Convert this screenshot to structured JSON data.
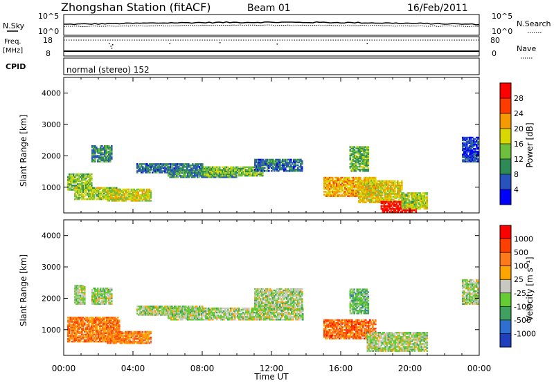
{
  "header": {
    "station": "Zhongshan Station (fitACF)",
    "beam": "Beam 01",
    "date": "16/Feb/2011"
  },
  "noise_panel": {
    "left_label": "N.Sky",
    "right_label": "N.Search",
    "left_ticks": [
      "10^5",
      "10^0"
    ],
    "right_ticks": [
      "10^5",
      "10^0"
    ]
  },
  "freq_panel": {
    "left_label_1": "Freq.",
    "left_label_2": "[MHz]",
    "right_label": "Nave",
    "left_ticks": [
      "18",
      "8"
    ],
    "right_ticks": [
      "80",
      "0"
    ]
  },
  "cpid_panel": {
    "label": "CPID",
    "text": "normal (stereo) 152"
  },
  "chart_data": [
    {
      "type": "heatmap",
      "title": "",
      "xlabel": "",
      "ylabel": "Slant Range [km]",
      "x_ticks": [
        "00:00",
        "04:00",
        "08:00",
        "12:00",
        "16:00",
        "20:00",
        "00:00"
      ],
      "y_ticks": [
        "1000",
        "2000",
        "3000",
        "4000"
      ],
      "ylim": [
        180,
        4500
      ],
      "colorbar": {
        "label": "Power [dB]",
        "ticks": [
          "4",
          "8",
          "12",
          "16",
          "20",
          "24",
          "28"
        ],
        "colors": [
          "#0000ff",
          "#2a52be",
          "#2e8b57",
          "#6fbf3f",
          "#d8d800",
          "#f59a00",
          "#ff3c00",
          "#ff0000"
        ]
      },
      "regions": [
        {
          "t0": 0.2,
          "t1": 1.6,
          "r0": 900,
          "r1": 1400,
          "level": 0.45
        },
        {
          "t0": 0.6,
          "t1": 3.2,
          "r0": 600,
          "r1": 1000,
          "level": 0.5
        },
        {
          "t0": 1.6,
          "t1": 2.8,
          "r0": 1800,
          "r1": 2300,
          "level": 0.3
        },
        {
          "t0": 2.5,
          "t1": 5.0,
          "r0": 550,
          "r1": 950,
          "level": 0.55
        },
        {
          "t0": 4.2,
          "t1": 8.0,
          "r0": 1450,
          "r1": 1750,
          "level": 0.25
        },
        {
          "t0": 6.0,
          "t1": 10.0,
          "r0": 1300,
          "r1": 1550,
          "level": 0.3
        },
        {
          "t0": 8.0,
          "t1": 11.5,
          "r0": 1350,
          "r1": 1650,
          "level": 0.45
        },
        {
          "t0": 11.0,
          "t1": 13.8,
          "r0": 1500,
          "r1": 1900,
          "level": 0.25
        },
        {
          "t0": 15.0,
          "t1": 18.0,
          "r0": 700,
          "r1": 1300,
          "level": 0.65
        },
        {
          "t0": 16.5,
          "t1": 17.6,
          "r0": 1500,
          "r1": 2300,
          "level": 0.4
        },
        {
          "t0": 17.0,
          "t1": 19.5,
          "r0": 500,
          "r1": 1200,
          "level": 0.6
        },
        {
          "t0": 18.3,
          "t1": 20.3,
          "r0": 200,
          "r1": 550,
          "level": 0.95
        },
        {
          "t0": 19.5,
          "t1": 21.0,
          "r0": 300,
          "r1": 800,
          "level": 0.5
        },
        {
          "t0": 23.0,
          "t1": 23.9,
          "r0": 1800,
          "r1": 2600,
          "level": 0.15
        }
      ]
    },
    {
      "type": "heatmap",
      "title": "",
      "xlabel": "Time UT",
      "ylabel": "Slant Range [km]",
      "x_ticks": [
        "00:00",
        "04:00",
        "08:00",
        "12:00",
        "16:00",
        "20:00",
        "00:00"
      ],
      "y_ticks": [
        "1000",
        "2000",
        "3000",
        "4000"
      ],
      "ylim": [
        180,
        4500
      ],
      "colorbar": {
        "label": "Velocity [m s⁻¹]",
        "ticks": [
          "1000",
          "500",
          "100",
          "25",
          "-25",
          "-100",
          "-500",
          "-1000"
        ],
        "colors": [
          "#1f3fbf",
          "#2f6fd0",
          "#3fa060",
          "#66cc33",
          "#c8c8c0",
          "#ffa500",
          "#ff7a1a",
          "#ff4000",
          "#ff0000"
        ]
      },
      "regions": [
        {
          "t0": 0.2,
          "t1": 3.2,
          "r0": 600,
          "r1": 1400,
          "level": 0.72
        },
        {
          "t0": 2.5,
          "t1": 5.0,
          "r0": 550,
          "r1": 950,
          "level": 0.7
        },
        {
          "t0": 0.6,
          "t1": 1.2,
          "r0": 1800,
          "r1": 2400,
          "level": 0.45
        },
        {
          "t0": 1.6,
          "t1": 2.8,
          "r0": 1800,
          "r1": 2300,
          "level": 0.45
        },
        {
          "t0": 4.2,
          "t1": 8.0,
          "r0": 1450,
          "r1": 1750,
          "level": 0.45
        },
        {
          "t0": 6.0,
          "t1": 13.8,
          "r0": 1300,
          "r1": 1700,
          "level": 0.45
        },
        {
          "t0": 11.0,
          "t1": 13.8,
          "r0": 1600,
          "r1": 2300,
          "level": 0.45
        },
        {
          "t0": 15.0,
          "t1": 18.0,
          "r0": 700,
          "r1": 1300,
          "level": 0.76
        },
        {
          "t0": 16.5,
          "t1": 17.6,
          "r0": 1500,
          "r1": 2300,
          "level": 0.35
        },
        {
          "t0": 17.5,
          "t1": 21.0,
          "r0": 300,
          "r1": 900,
          "level": 0.45
        },
        {
          "t0": 23.0,
          "t1": 23.9,
          "r0": 1800,
          "r1": 2600,
          "level": 0.45
        }
      ]
    }
  ],
  "colors": {
    "frame": "#000000"
  }
}
